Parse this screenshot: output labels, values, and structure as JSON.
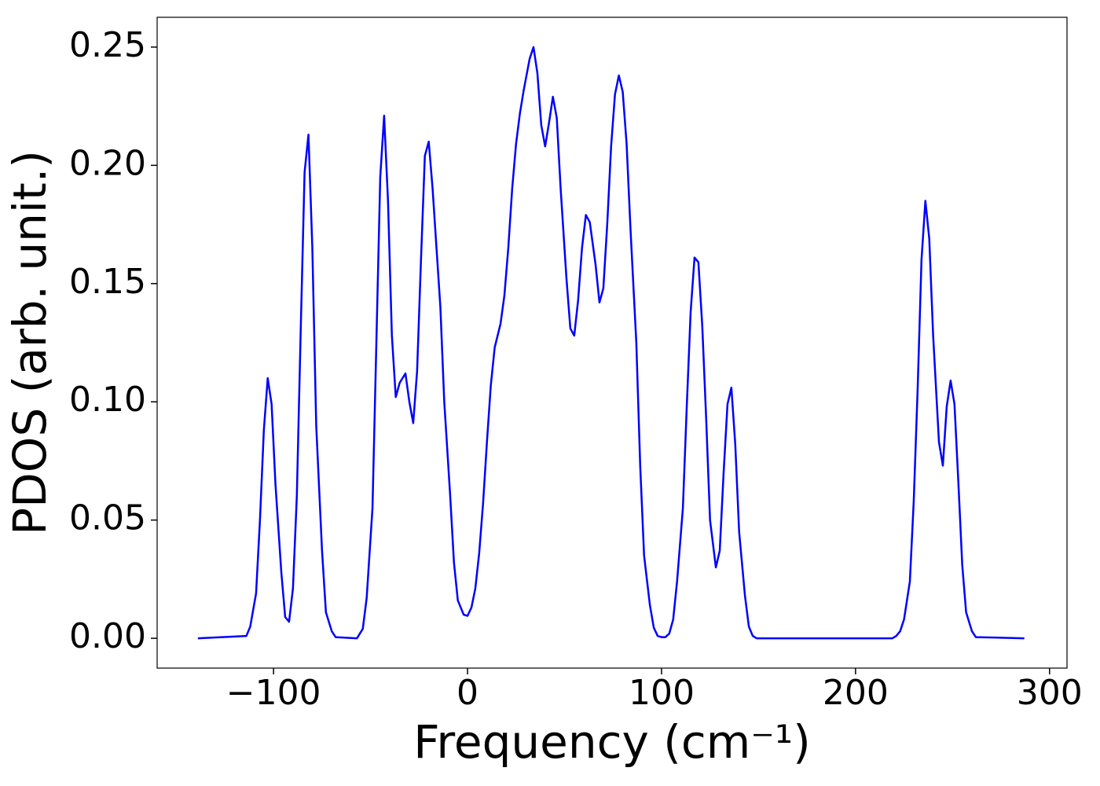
{
  "chart_data": {
    "type": "line",
    "x_label": "Frequency (cm⁻¹)",
    "y_label": "PDOS (arb. unit.)",
    "color": "#0000ff",
    "x": [
      -139,
      -114,
      -112,
      -109,
      -107,
      -105,
      -103,
      -101,
      -99,
      -96,
      -94,
      -92,
      -90,
      -88,
      -86,
      -84,
      -82,
      -80,
      -78,
      -75,
      -73,
      -70,
      -68,
      -57,
      -54,
      -52,
      -49,
      -47,
      -45,
      -43,
      -41,
      -39,
      -37,
      -35,
      -32,
      -30,
      -28,
      -26,
      -24,
      -22,
      -20,
      -18,
      -16,
      -14,
      -12,
      -9,
      -7,
      -5,
      -2,
      0,
      2,
      4,
      6,
      8,
      10,
      12,
      14,
      17,
      19,
      21,
      23,
      25,
      27,
      29,
      32,
      34,
      36,
      38,
      40,
      42,
      44,
      46,
      48,
      51,
      53,
      55,
      57,
      59,
      61,
      63,
      66,
      68,
      70,
      72,
      74,
      76,
      78,
      80,
      82,
      84,
      87,
      89,
      91,
      94,
      96,
      98,
      100,
      102,
      104,
      106,
      108,
      111,
      113,
      115,
      117,
      119,
      121,
      123,
      125,
      128,
      130,
      132,
      134,
      136,
      138,
      140,
      143,
      145,
      147,
      149,
      219,
      221,
      223,
      225,
      228,
      230,
      232,
      234,
      236,
      238,
      240,
      243,
      245,
      247,
      249,
      251,
      253,
      255,
      257,
      260,
      262,
      287
    ],
    "values": [
      0,
      0.001,
      0.005,
      0.019,
      0.05,
      0.088,
      0.11,
      0.099,
      0.065,
      0.028,
      0.009,
      0.007,
      0.021,
      0.06,
      0.13,
      0.197,
      0.213,
      0.165,
      0.09,
      0.037,
      0.011,
      0.003,
      0.0005,
      0,
      0.004,
      0.017,
      0.055,
      0.125,
      0.195,
      0.221,
      0.185,
      0.128,
      0.102,
      0.108,
      0.112,
      0.1,
      0.091,
      0.113,
      0.16,
      0.204,
      0.21,
      0.19,
      0.165,
      0.14,
      0.1,
      0.061,
      0.032,
      0.016,
      0.01,
      0.0095,
      0.013,
      0.021,
      0.036,
      0.057,
      0.083,
      0.107,
      0.123,
      0.133,
      0.145,
      0.165,
      0.19,
      0.209,
      0.222,
      0.232,
      0.245,
      0.25,
      0.239,
      0.217,
      0.208,
      0.218,
      0.229,
      0.22,
      0.19,
      0.152,
      0.131,
      0.128,
      0.143,
      0.165,
      0.179,
      0.176,
      0.158,
      0.142,
      0.148,
      0.175,
      0.208,
      0.23,
      0.238,
      0.231,
      0.209,
      0.173,
      0.125,
      0.073,
      0.035,
      0.014,
      0.0045,
      0.001,
      0.0005,
      0.0005,
      0.002,
      0.008,
      0.024,
      0.055,
      0.098,
      0.138,
      0.161,
      0.159,
      0.132,
      0.093,
      0.05,
      0.03,
      0.037,
      0.07,
      0.099,
      0.106,
      0.082,
      0.045,
      0.018,
      0.005,
      0.001,
      0,
      0,
      0.001,
      0.003,
      0.008,
      0.024,
      0.058,
      0.105,
      0.16,
      0.185,
      0.169,
      0.128,
      0.083,
      0.073,
      0.098,
      0.109,
      0.099,
      0.066,
      0.031,
      0.011,
      0.003,
      0.0005,
      0
    ],
    "xlim": [
      -160,
      309
    ],
    "ylim": [
      -0.0126,
      0.2626
    ],
    "xticks": [
      {
        "value": -100,
        "label": "−100"
      },
      0,
      100,
      200,
      300
    ],
    "yticks": [
      {
        "value": 0,
        "label": "0.00"
      },
      {
        "value": 0.05,
        "label": "0.05"
      },
      {
        "value": 0.1,
        "label": "0.10"
      },
      {
        "value": 0.15,
        "label": "0.15"
      },
      {
        "value": 0.2,
        "label": "0.20"
      },
      {
        "value": 0.25,
        "label": "0.25"
      }
    ]
  }
}
